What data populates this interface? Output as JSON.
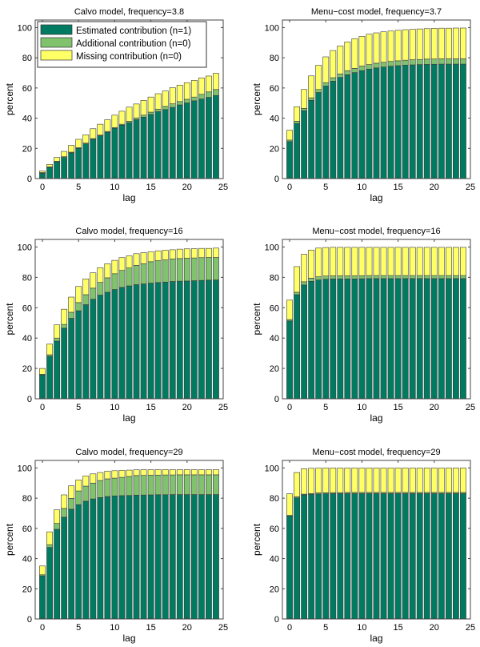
{
  "chart_data": [
    {
      "type": "bar",
      "stacked": true,
      "title": "Calvo model, frequency=3.8",
      "xlabel": "lag",
      "ylabel": "percent",
      "xlim": [
        -1,
        25
      ],
      "ylim": [
        0,
        105
      ],
      "xticks": [
        0,
        5,
        10,
        15,
        20,
        25
      ],
      "yticks": [
        0,
        20,
        40,
        60,
        80,
        100
      ],
      "legend_placement": "top-left",
      "legend": [
        "Estimated contribution (n=1)",
        "Additional contribution (n=0)",
        "Missing contribution (n=0)"
      ],
      "x": [
        0,
        1,
        2,
        3,
        4,
        5,
        6,
        7,
        8,
        9,
        10,
        11,
        12,
        13,
        14,
        15,
        16,
        17,
        18,
        19,
        20,
        21,
        22,
        23,
        24
      ],
      "cumulative": {
        "estimated": [
          3.5,
          7.4,
          11,
          14,
          17,
          20,
          23,
          26,
          28.4,
          30.7,
          33.3,
          35.4,
          37,
          39,
          40.7,
          42.5,
          44.3,
          45.7,
          47.1,
          48.8,
          50.1,
          51.5,
          52.7,
          53.8,
          55
        ],
        "estimated_plus_additional": [
          4,
          7.8,
          11.5,
          14.5,
          17.5,
          20.5,
          23.5,
          26.5,
          28.8,
          31.2,
          33.8,
          36,
          38,
          40.2,
          42,
          44,
          46,
          47.8,
          49.5,
          51,
          52.5,
          54,
          55.8,
          57.4,
          59
        ],
        "total": [
          5,
          9.4,
          14,
          18,
          22,
          26,
          29,
          33,
          36,
          39,
          42,
          44.6,
          47.3,
          49.4,
          51.8,
          54,
          56.2,
          58,
          60.2,
          61.9,
          63.5,
          65,
          66.7,
          67.9,
          69.7
        ]
      }
    },
    {
      "type": "bar",
      "stacked": true,
      "title": "Menu−cost model, frequency=3.7",
      "xlabel": "lag",
      "ylabel": "percent",
      "xlim": [
        -1,
        25
      ],
      "ylim": [
        0,
        105
      ],
      "xticks": [
        0,
        5,
        10,
        15,
        20,
        25
      ],
      "yticks": [
        0,
        20,
        40,
        60,
        80,
        100
      ],
      "x": [
        0,
        1,
        2,
        3,
        4,
        5,
        6,
        7,
        8,
        9,
        10,
        11,
        12,
        13,
        14,
        15,
        16,
        17,
        18,
        19,
        20,
        21,
        22,
        23,
        24
      ],
      "cumulative": {
        "estimated": [
          24.5,
          36.5,
          45,
          51.8,
          57,
          61.3,
          64.5,
          67,
          68.8,
          70.2,
          71.5,
          72.5,
          73.3,
          73.9,
          74.4,
          74.8,
          75.1,
          75.3,
          75.5,
          75.6,
          75.7,
          75.8,
          75.8,
          75.8,
          75.8
        ],
        "estimated_plus_additional": [
          25.5,
          38,
          46.5,
          53.5,
          59,
          63.5,
          66.8,
          69.3,
          71.4,
          73,
          74.5,
          75.5,
          76.4,
          77,
          77.6,
          78,
          78.4,
          78.7,
          78.9,
          79.1,
          79.2,
          79.3,
          79.3,
          79.3,
          79.3
        ],
        "total": [
          32,
          47.6,
          59,
          68,
          75,
          80.6,
          84.8,
          87.8,
          90.5,
          92.6,
          94.2,
          95.6,
          96.5,
          97.2,
          97.7,
          98.2,
          98.6,
          98.9,
          99.1,
          99.3,
          99.5,
          99.6,
          99.6,
          99.7,
          99.7
        ]
      }
    },
    {
      "type": "bar",
      "stacked": true,
      "title": "Calvo model, frequency=16",
      "xlabel": "lag",
      "ylabel": "percent",
      "xlim": [
        -1,
        25
      ],
      "ylim": [
        0,
        105
      ],
      "xticks": [
        0,
        5,
        10,
        15,
        20,
        25
      ],
      "yticks": [
        0,
        20,
        40,
        60,
        80,
        100
      ],
      "x": [
        0,
        1,
        2,
        3,
        4,
        5,
        6,
        7,
        8,
        9,
        10,
        11,
        12,
        13,
        14,
        15,
        16,
        17,
        18,
        19,
        20,
        21,
        22,
        23,
        24
      ],
      "cumulative": {
        "estimated": [
          15.7,
          28,
          38,
          46.5,
          53,
          58,
          62,
          65.6,
          68.3,
          70.2,
          72,
          73.4,
          74.4,
          75.2,
          75.7,
          76.2,
          76.6,
          76.9,
          77.3,
          77.5,
          77.6,
          77.8,
          78,
          78.2,
          78.3
        ],
        "estimated_plus_additional": [
          16.2,
          29,
          40,
          49,
          57,
          63.4,
          68.6,
          72.9,
          76.7,
          79.7,
          82.4,
          84.6,
          86.2,
          87.9,
          89,
          90.3,
          91,
          91.5,
          92.1,
          92.4,
          92.6,
          92.8,
          93,
          93.1,
          93.1
        ],
        "total": [
          20,
          36,
          48.7,
          59,
          67,
          74,
          79,
          83,
          86.4,
          89,
          91.2,
          93,
          94.2,
          95.6,
          96.3,
          96.8,
          97.5,
          97.9,
          98.2,
          98.6,
          98.8,
          98.9,
          99.1,
          99.1,
          99.3
        ]
      }
    },
    {
      "type": "bar",
      "stacked": true,
      "title": "Menu−cost model, frequency=16",
      "xlabel": "lag",
      "ylabel": "percent",
      "xlim": [
        -1,
        25
      ],
      "ylim": [
        0,
        105
      ],
      "xticks": [
        0,
        5,
        10,
        15,
        20,
        25
      ],
      "yticks": [
        0,
        20,
        40,
        60,
        80,
        100
      ],
      "x": [
        0,
        1,
        2,
        3,
        4,
        5,
        6,
        7,
        8,
        9,
        10,
        11,
        12,
        13,
        14,
        15,
        16,
        17,
        18,
        19,
        20,
        21,
        22,
        23,
        24
      ],
      "cumulative": {
        "estimated": [
          51.3,
          68.6,
          75,
          77.4,
          78.3,
          78.8,
          79,
          79,
          79,
          79,
          79.1,
          79.2,
          79.2,
          79.2,
          79.2,
          79.2,
          79.2,
          79.2,
          79.2,
          79.2,
          79.2,
          79.2,
          79.2,
          79.2,
          79.2
        ],
        "estimated_plus_additional": [
          52.2,
          70.2,
          77.1,
          79.5,
          80.4,
          80.9,
          81,
          81,
          81,
          81,
          81.1,
          81.2,
          81.2,
          81.2,
          81.2,
          81.2,
          81.2,
          81.2,
          81.2,
          81.2,
          81.2,
          81.2,
          81.2,
          81.2,
          81.2
        ],
        "total": [
          65,
          87.1,
          95.2,
          98,
          99.3,
          99.7,
          99.8,
          99.8,
          99.8,
          99.8,
          99.8,
          99.8,
          99.8,
          99.8,
          99.8,
          99.8,
          99.8,
          99.8,
          99.8,
          99.8,
          99.8,
          99.8,
          99.8,
          99.8,
          99.8
        ]
      }
    },
    {
      "type": "bar",
      "stacked": true,
      "title": "Calvo model, frequency=29",
      "xlabel": "lag",
      "ylabel": "percent",
      "xlim": [
        -1,
        25
      ],
      "ylim": [
        0,
        105
      ],
      "xticks": [
        0,
        5,
        10,
        15,
        20,
        25
      ],
      "yticks": [
        0,
        20,
        40,
        60,
        80,
        100
      ],
      "x": [
        0,
        1,
        2,
        3,
        4,
        5,
        6,
        7,
        8,
        9,
        10,
        11,
        12,
        13,
        14,
        15,
        16,
        17,
        18,
        19,
        20,
        21,
        22,
        23,
        24
      ],
      "cumulative": {
        "estimated": [
          28.6,
          47.4,
          59.4,
          67.4,
          72.7,
          75.7,
          78,
          79.5,
          80.4,
          81.1,
          81.5,
          81.7,
          81.8,
          82,
          82.1,
          82.2,
          82.3,
          82.3,
          82.4,
          82.4,
          82.4,
          82.4,
          82.4,
          82.4,
          82.4
        ],
        "estimated_plus_additional": [
          29.3,
          49.2,
          63.3,
          73.2,
          79.9,
          84.8,
          88,
          90,
          91.7,
          92.8,
          93.3,
          93.8,
          94.4,
          95,
          95.1,
          95.2,
          95.3,
          95.4,
          95.4,
          95.5,
          95.5,
          95.5,
          95.5,
          95.5,
          95.5
        ],
        "total": [
          35.1,
          57.7,
          72.3,
          82.2,
          88.2,
          92.1,
          94.7,
          96.1,
          97,
          97.9,
          98.2,
          98.4,
          98.6,
          98.8,
          98.9,
          98.9,
          98.9,
          98.9,
          98.9,
          98.9,
          98.9,
          98.9,
          98.9,
          98.9,
          98.9
        ]
      }
    },
    {
      "type": "bar",
      "stacked": true,
      "title": "Menu−cost model, frequency=29",
      "xlabel": "lag",
      "ylabel": "percent",
      "xlim": [
        -1,
        25
      ],
      "ylim": [
        0,
        105
      ],
      "xticks": [
        0,
        5,
        10,
        15,
        20,
        25
      ],
      "yticks": [
        0,
        20,
        40,
        60,
        80,
        100
      ],
      "x": [
        0,
        1,
        2,
        3,
        4,
        5,
        6,
        7,
        8,
        9,
        10,
        11,
        12,
        13,
        14,
        15,
        16,
        17,
        18,
        19,
        20,
        21,
        22,
        23,
        24
      ],
      "cumulative": {
        "estimated": [
          68.3,
          80.2,
          82.2,
          82.5,
          82.8,
          82.9,
          83,
          83,
          83,
          83,
          83,
          83,
          83,
          83,
          83,
          83,
          83,
          83,
          83,
          83,
          83,
          83,
          83,
          83,
          83
        ],
        "estimated_plus_additional": [
          68.6,
          81,
          82.7,
          83.1,
          83.5,
          83.6,
          83.7,
          83.7,
          83.8,
          83.8,
          83.8,
          83.8,
          83.8,
          83.8,
          83.8,
          83.8,
          83.8,
          83.8,
          83.8,
          83.8,
          83.8,
          83.8,
          83.8,
          83.8,
          83.8
        ],
        "total": [
          82.9,
          97,
          99.5,
          99.8,
          99.9,
          100,
          100,
          100,
          100,
          100,
          100,
          100,
          100,
          100,
          100,
          100,
          100,
          100,
          100,
          100,
          100,
          100,
          100,
          100,
          100
        ]
      }
    }
  ],
  "legend": {
    "items": [
      {
        "label": "Estimated contribution (n=1)",
        "color": "#007b61"
      },
      {
        "label": "Additional contribution (n=0)",
        "color": "#80c36c"
      },
      {
        "label": "Missing contribution (n=0)",
        "color": "#ffff66"
      }
    ]
  },
  "colors": {
    "estimated": "#007b61",
    "additional": "#80c36c",
    "missing": "#ffff66",
    "bar_edge": "#3a3a3a",
    "axis": "#444444"
  }
}
